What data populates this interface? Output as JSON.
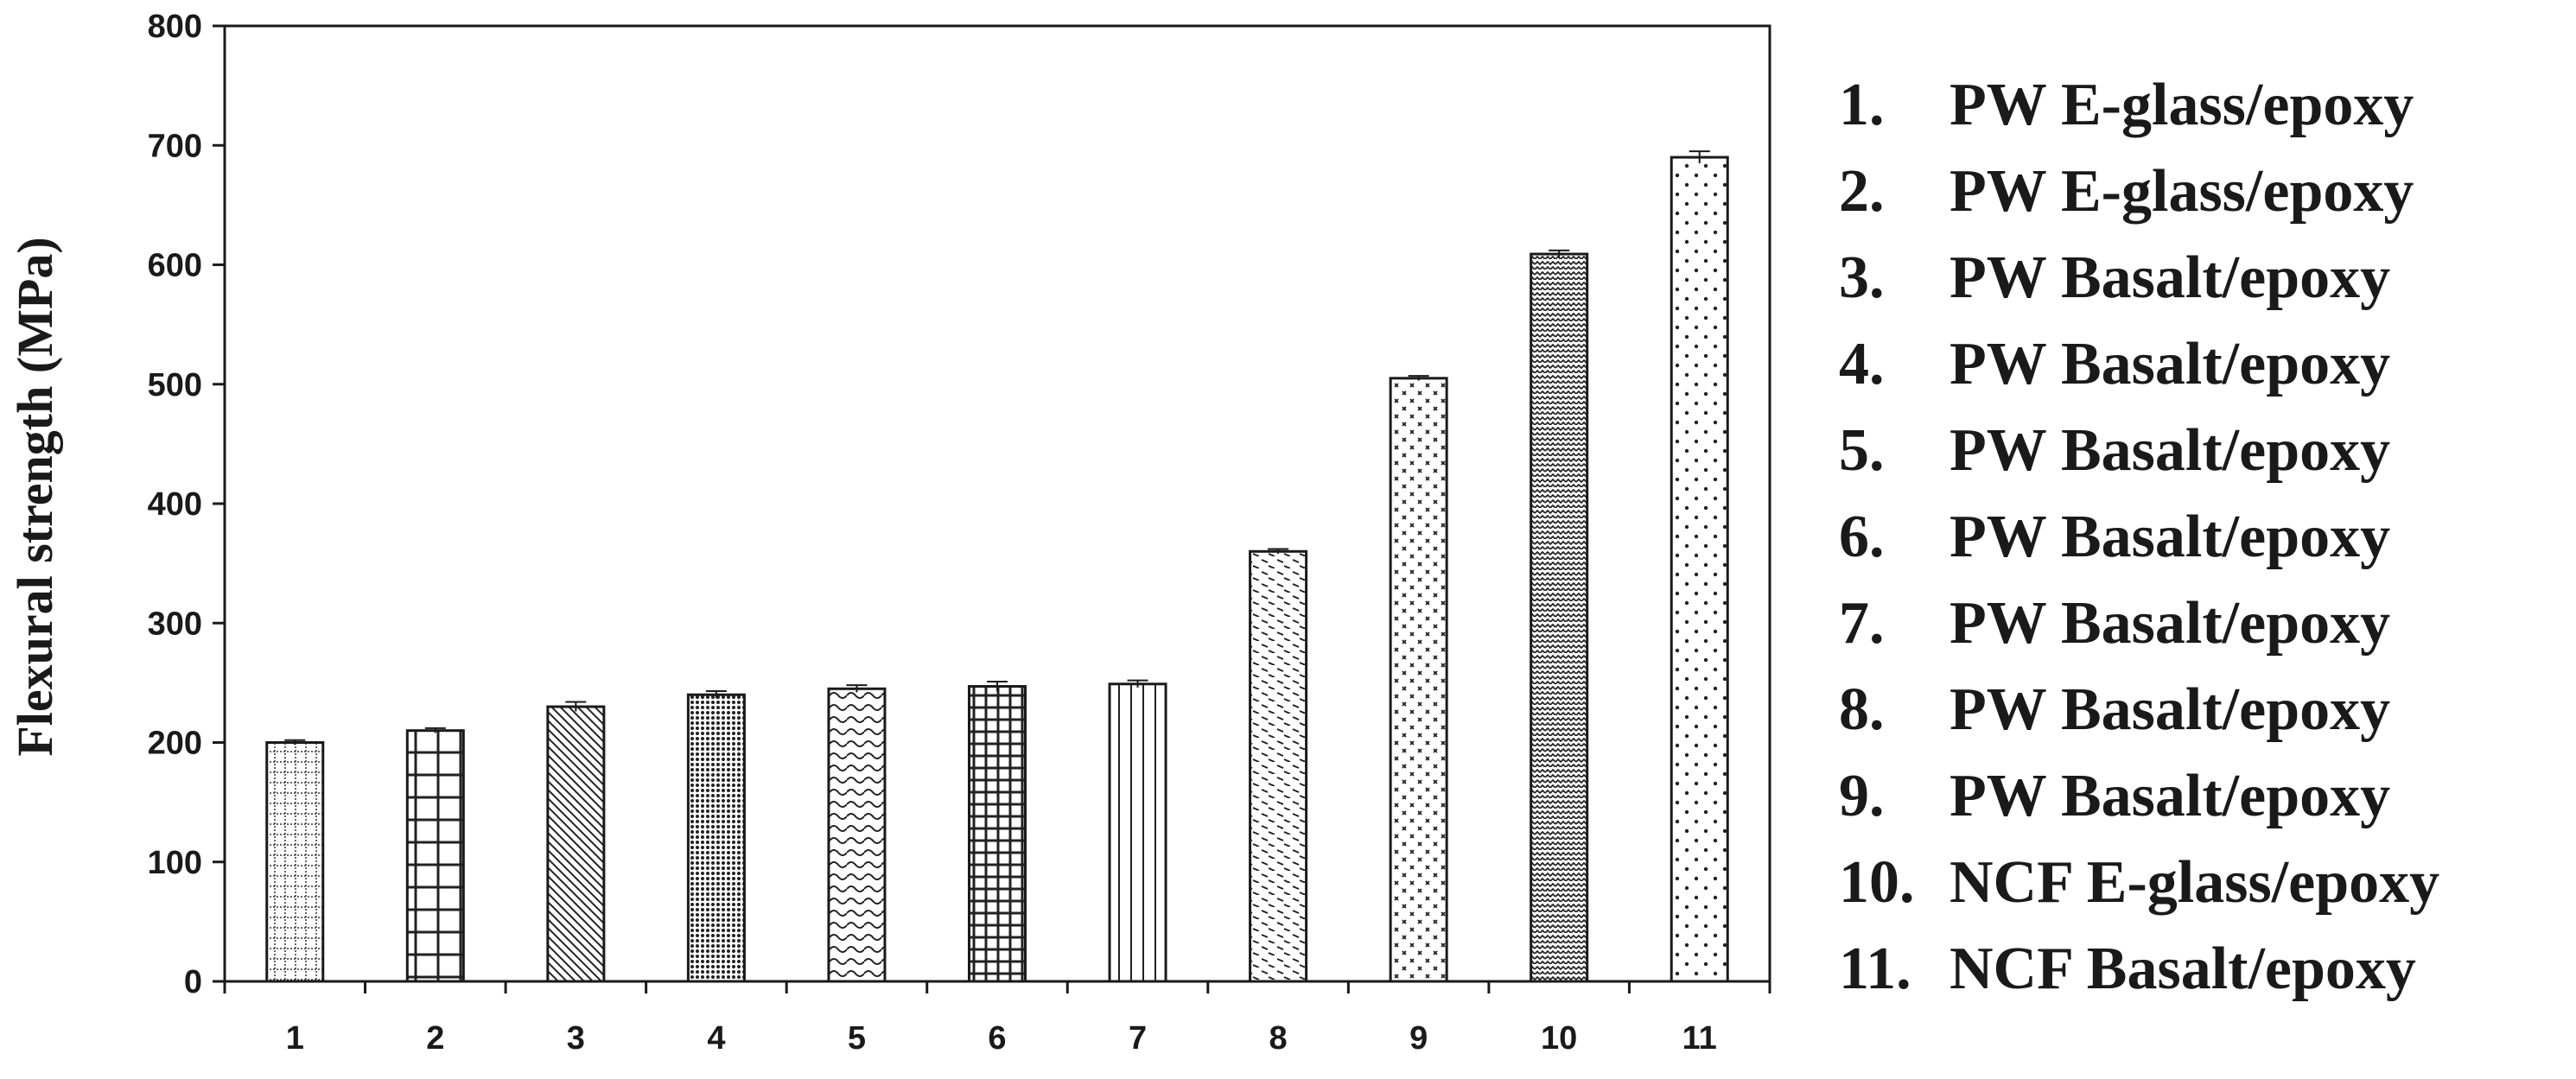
{
  "chart_data": {
    "type": "bar",
    "ylabel": "Flexural strength (MPa)",
    "xlabel": "",
    "ylim": [
      0,
      800
    ],
    "yticks": [
      "0",
      "100",
      "200",
      "300",
      "400",
      "500",
      "600",
      "700",
      "800"
    ],
    "categories": [
      "1",
      "2",
      "3",
      "4",
      "5",
      "6",
      "7",
      "8",
      "9",
      "10",
      "11"
    ],
    "values": [
      200,
      210,
      230,
      240,
      245,
      247,
      249,
      360,
      505,
      609,
      690
    ],
    "errors": [
      2,
      2,
      4,
      3,
      3,
      4,
      3,
      2,
      2,
      3,
      5
    ],
    "patterns": [
      "dotted-grid",
      "grid",
      "diagonal",
      "dense-dots",
      "waves",
      "fine-grid",
      "vertical-lines",
      "dashes",
      "crosses",
      "zigzag",
      "sparse-dots"
    ],
    "bar_color": "#ffffff",
    "stroke_color": "#1a1a1a",
    "grid": false,
    "legend_position": "right",
    "legend": [
      {
        "num": "1.",
        "label": "PW E-glass/epoxy"
      },
      {
        "num": "2.",
        "label": "PW E-glass/epoxy"
      },
      {
        "num": "3.",
        "label": "PW Basalt/epoxy"
      },
      {
        "num": "4.",
        "label": "PW Basalt/epoxy"
      },
      {
        "num": "5.",
        "label": "PW Basalt/epoxy"
      },
      {
        "num": "6.",
        "label": "PW Basalt/epoxy"
      },
      {
        "num": "7.",
        "label": "PW Basalt/epoxy"
      },
      {
        "num": "8.",
        "label": "PW Basalt/epoxy"
      },
      {
        "num": "9.",
        "label": "PW Basalt/epoxy"
      },
      {
        "num": "10.",
        "label": "NCF E-glass/epoxy"
      },
      {
        "num": "11.",
        "label": "NCF Basalt/epoxy"
      }
    ]
  }
}
